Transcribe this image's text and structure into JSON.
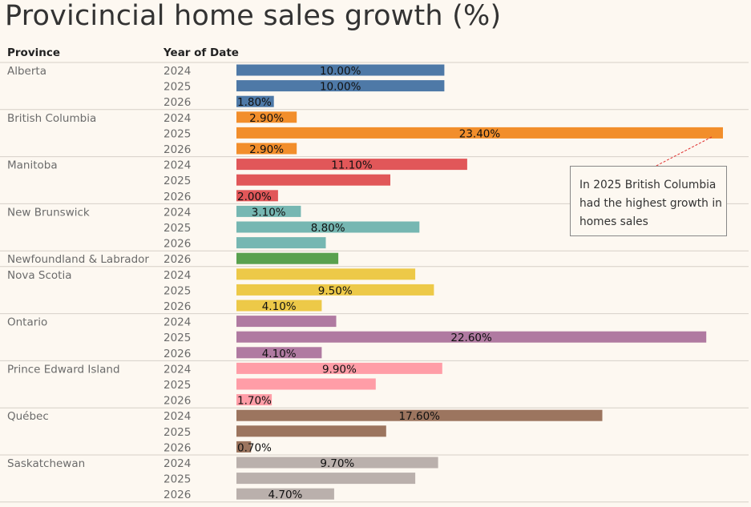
{
  "title": "Provicincial home sales growth (%)",
  "headers": {
    "province": "Province",
    "year": "Year of Date"
  },
  "annotation": {
    "text": "In 2025  British Columbia had the highest growth in homes sales"
  },
  "chart_data": {
    "type": "bar",
    "orientation": "horizontal",
    "title": "Provicincial home sales growth (%)",
    "xlabel": "",
    "ylabel": "",
    "grid": false,
    "groups": [
      {
        "province": "Alberta",
        "color": "#4e79a7",
        "bars": [
          {
            "year": "2024",
            "value": 10.0,
            "label": "10.00%"
          },
          {
            "year": "2025",
            "value": 10.0,
            "label": "10.00%"
          },
          {
            "year": "2026",
            "value": 1.8,
            "label": "1.80%"
          }
        ]
      },
      {
        "province": "British Columbia",
        "color": "#f28e2b",
        "bars": [
          {
            "year": "2024",
            "value": 2.9,
            "label": "2.90%"
          },
          {
            "year": "2025",
            "value": 23.4,
            "label": "23.40%"
          },
          {
            "year": "2026",
            "value": 2.9,
            "label": "2.90%"
          }
        ]
      },
      {
        "province": "Manitoba",
        "color": "#e15759",
        "bars": [
          {
            "year": "2024",
            "value": 11.1,
            "label": "11.10%"
          },
          {
            "year": "2025",
            "value": 7.4,
            "label": ""
          },
          {
            "year": "2026",
            "value": 2.0,
            "label": "2.00%"
          }
        ]
      },
      {
        "province": "New Brunswick",
        "color": "#76b7b2",
        "bars": [
          {
            "year": "2024",
            "value": 3.1,
            "label": "3.10%"
          },
          {
            "year": "2025",
            "value": 8.8,
            "label": "8.80%"
          },
          {
            "year": "2026",
            "value": 4.3,
            "label": ""
          }
        ]
      },
      {
        "province": "Newfoundland & Labrador",
        "color": "#59a14f",
        "bars": [
          {
            "year": "2026",
            "value": 4.9,
            "label": ""
          }
        ]
      },
      {
        "province": "Nova Scotia",
        "color": "#edc948",
        "bars": [
          {
            "year": "2024",
            "value": 8.6,
            "label": ""
          },
          {
            "year": "2025",
            "value": 9.5,
            "label": "9.50%"
          },
          {
            "year": "2026",
            "value": 4.1,
            "label": "4.10%"
          }
        ]
      },
      {
        "province": "Ontario",
        "color": "#b07aa1",
        "bars": [
          {
            "year": "2024",
            "value": 4.8,
            "label": ""
          },
          {
            "year": "2025",
            "value": 22.6,
            "label": "22.60%"
          },
          {
            "year": "2026",
            "value": 4.1,
            "label": "4.10%"
          }
        ]
      },
      {
        "province": "Prince Edward Island",
        "color": "#ff9da7",
        "bars": [
          {
            "year": "2024",
            "value": 9.9,
            "label": "9.90%"
          },
          {
            "year": "2025",
            "value": 6.7,
            "label": ""
          },
          {
            "year": "2026",
            "value": 1.7,
            "label": "1.70%"
          }
        ]
      },
      {
        "province": "Québec",
        "color": "#9c755f",
        "bars": [
          {
            "year": "2024",
            "value": 17.6,
            "label": "17.60%"
          },
          {
            "year": "2025",
            "value": 7.2,
            "label": ""
          },
          {
            "year": "2026",
            "value": 0.7,
            "label": "0.70%"
          }
        ]
      },
      {
        "province": "Saskatchewan",
        "color": "#bab0ac",
        "bars": [
          {
            "year": "2024",
            "value": 9.7,
            "label": "9.70%"
          },
          {
            "year": "2025",
            "value": 8.6,
            "label": ""
          },
          {
            "year": "2026",
            "value": 4.7,
            "label": "4.70%"
          }
        ]
      }
    ]
  }
}
